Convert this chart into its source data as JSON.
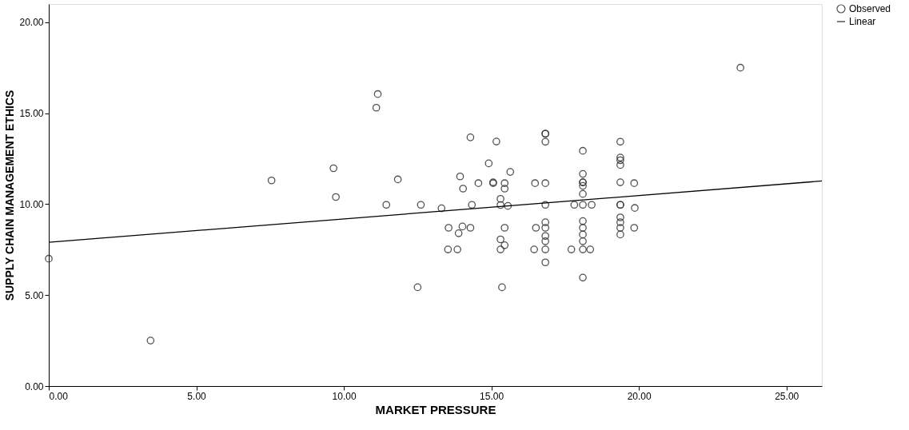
{
  "chart_data": {
    "type": "scatter",
    "xlabel": "MARKET PRESSURE",
    "ylabel": "SUPPLY CHAIN MANAGEMENT ETHICS",
    "xlim": [
      0,
      26.2
    ],
    "ylim": [
      0,
      21
    ],
    "xticks": [
      {
        "value": 0,
        "label": "0.00"
      },
      {
        "value": 5,
        "label": "5.00"
      },
      {
        "value": 10,
        "label": "10.00"
      },
      {
        "value": 15,
        "label": "15.00"
      },
      {
        "value": 20,
        "label": "20.00"
      },
      {
        "value": 25,
        "label": "25.00"
      }
    ],
    "yticks": [
      {
        "value": 0,
        "label": "0.00"
      },
      {
        "value": 5,
        "label": "5.00"
      },
      {
        "value": 10,
        "label": "10.00"
      },
      {
        "value": 15,
        "label": "15.00"
      },
      {
        "value": 20,
        "label": "20.00"
      }
    ],
    "grid": false,
    "legend": "top right",
    "series": [
      {
        "name": "Observed",
        "marker": "circle",
        "color": "#333333",
        "x": [
          0,
          3.45,
          7.55,
          9.65,
          9.73,
          11.15,
          11.1,
          11.44,
          11.83,
          12.5,
          12.61,
          13.31,
          13.53,
          13.55,
          13.85,
          13.89,
          13.94,
          14.02,
          14.04,
          14.29,
          14.29,
          14.34,
          14.56,
          14.91,
          15.06,
          15.06,
          15.17,
          15.31,
          15.31,
          15.31,
          15.31,
          15.36,
          15.45,
          15.45,
          15.45,
          15.45,
          15.56,
          15.64,
          16.45,
          16.48,
          16.51,
          16.83,
          16.83,
          16.83,
          16.83,
          16.83,
          16.83,
          16.83,
          16.83,
          16.83,
          16.83,
          16.83,
          17.71,
          17.81,
          18.1,
          18.1,
          18.1,
          18.1,
          18.1,
          18.1,
          18.1,
          18.1,
          18.1,
          18.1,
          18.1,
          18.1,
          18.1,
          18.35,
          18.4,
          19.37,
          19.37,
          19.37,
          19.37,
          19.37,
          19.37,
          19.37,
          19.37,
          19.37,
          19.37,
          19.37,
          19.84,
          19.84,
          19.86,
          23.44
        ],
        "values": [
          7.0,
          2.5,
          11.3,
          11.97,
          10.39,
          16.05,
          15.3,
          9.96,
          11.36,
          5.43,
          9.96,
          9.77,
          7.51,
          8.7,
          7.51,
          8.4,
          11.52,
          8.77,
          10.85,
          13.67,
          8.7,
          9.96,
          11.15,
          12.24,
          11.2,
          11.15,
          13.44,
          10.29,
          9.95,
          8.06,
          7.51,
          5.43,
          11.15,
          10.85,
          8.7,
          7.74,
          9.9,
          11.77,
          7.51,
          11.15,
          8.7,
          13.87,
          13.43,
          11.15,
          9.96,
          9.0,
          8.7,
          8.25,
          7.96,
          7.51,
          6.8,
          13.87,
          7.51,
          9.96,
          12.93,
          11.66,
          11.2,
          11.0,
          10.56,
          9.96,
          9.07,
          8.7,
          8.33,
          7.96,
          7.51,
          5.96,
          11.2,
          7.51,
          9.96,
          13.43,
          12.56,
          12.41,
          12.15,
          11.2,
          9.96,
          9.27,
          9.0,
          8.7,
          8.33,
          9.96,
          11.15,
          8.7,
          9.79,
          17.5
        ]
      },
      {
        "name": "Linear",
        "type": "line",
        "marker": "none",
        "line_style": "solid",
        "color": "#000000",
        "x": [
          0,
          26.2
        ],
        "values": [
          7.9,
          11.27
        ]
      }
    ]
  }
}
